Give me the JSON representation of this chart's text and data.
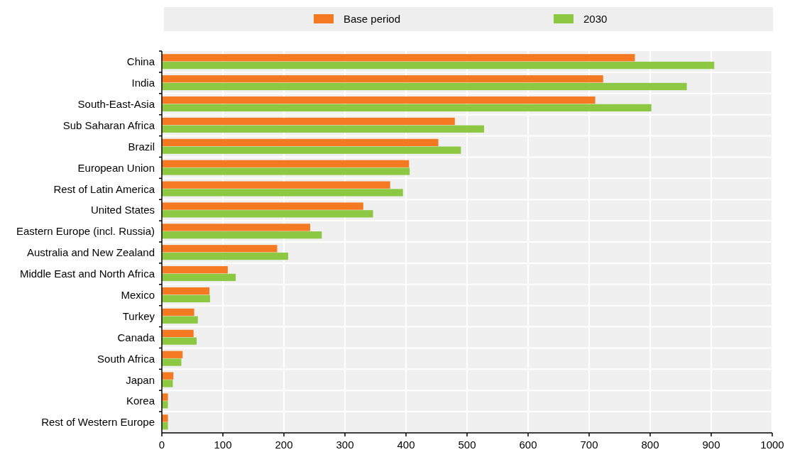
{
  "chart_data": {
    "type": "bar",
    "orientation": "horizontal",
    "categories": [
      "China",
      "India",
      "South-East-Asia",
      "Sub Saharan Africa",
      "Brazil",
      "European Union",
      "Rest of Latin America",
      "United States",
      "Eastern Europe (incl. Russia)",
      "Australia and New Zealand",
      "Middle East and North Africa",
      "Mexico",
      "Turkey",
      "Canada",
      "South Africa",
      "Japan",
      "Korea",
      "Rest of Western Europe"
    ],
    "series": [
      {
        "name": "Base period",
        "color": "#f47920",
        "values": [
          775,
          723,
          710,
          480,
          453,
          405,
          374,
          330,
          243,
          189,
          108,
          78,
          53,
          52,
          34,
          19,
          10,
          10
        ]
      },
      {
        "name": "2030",
        "color": "#8cc841",
        "values": [
          905,
          860,
          802,
          528,
          490,
          406,
          395,
          346,
          262,
          207,
          121,
          79,
          59,
          57,
          32,
          18,
          10,
          10
        ]
      }
    ],
    "xlim": [
      0,
      1000
    ],
    "xticks": [
      0,
      100,
      200,
      300,
      400,
      500,
      600,
      700,
      800,
      900,
      1000
    ],
    "grid": true,
    "legend": "top"
  }
}
